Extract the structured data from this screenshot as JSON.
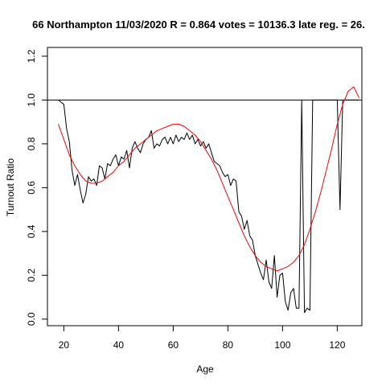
{
  "chart_data": {
    "type": "line",
    "title": "66 Northampton 11/03/2020 R = 0.864 votes = 10136.3 late reg. = 26.",
    "xlabel": "Age",
    "ylabel": "Turnout Ratio",
    "xlim": [
      14,
      129
    ],
    "ylim": [
      -0.03,
      1.24
    ],
    "xticks": [
      20,
      40,
      60,
      80,
      100,
      120
    ],
    "yticks": [
      0.0,
      0.2,
      0.4,
      0.6,
      0.8,
      1.0,
      1.2
    ],
    "xtick_labels": [
      "20",
      "40",
      "60",
      "80",
      "100",
      "120"
    ],
    "ytick_labels": [
      "0.0",
      "0.2",
      "0.4",
      "0.6",
      "0.8",
      "1.0",
      "1.2"
    ],
    "reference_line": {
      "y": 1.0,
      "color": "#000000"
    },
    "series": [
      {
        "color": "#000000",
        "x": [
          18,
          19,
          20,
          21,
          22,
          23,
          24,
          25,
          26,
          27,
          28,
          29,
          30,
          31,
          32,
          33,
          34,
          35,
          36,
          37,
          38,
          39,
          40,
          41,
          42,
          43,
          44,
          45,
          46,
          47,
          48,
          49,
          50,
          51,
          52,
          53,
          54,
          55,
          56,
          57,
          58,
          59,
          60,
          61,
          62,
          63,
          64,
          65,
          66,
          67,
          68,
          69,
          70,
          71,
          72,
          73,
          74,
          75,
          76,
          77,
          78,
          79,
          80,
          81,
          82,
          83,
          84,
          85,
          86,
          87,
          88,
          89,
          90,
          91,
          92,
          93,
          94,
          95,
          96,
          97,
          98,
          99,
          100,
          101,
          102,
          103,
          104,
          105,
          106,
          107,
          108,
          109,
          110,
          111,
          112,
          113,
          114,
          115,
          116,
          117,
          118,
          119,
          120,
          121,
          122,
          123,
          124,
          125,
          126,
          127,
          128
        ],
        "y": [
          1.0,
          0.99,
          0.98,
          0.87,
          0.81,
          0.68,
          0.61,
          0.66,
          0.59,
          0.53,
          0.57,
          0.65,
          0.63,
          0.64,
          0.61,
          0.7,
          0.69,
          0.64,
          0.71,
          0.7,
          0.73,
          0.75,
          0.7,
          0.74,
          0.73,
          0.77,
          0.69,
          0.78,
          0.81,
          0.78,
          0.76,
          0.8,
          0.82,
          0.83,
          0.86,
          0.78,
          0.8,
          0.79,
          0.82,
          0.83,
          0.8,
          0.83,
          0.8,
          0.84,
          0.81,
          0.83,
          0.82,
          0.85,
          0.82,
          0.84,
          0.8,
          0.82,
          0.79,
          0.81,
          0.78,
          0.8,
          0.76,
          0.72,
          0.71,
          0.7,
          0.67,
          0.65,
          0.66,
          0.61,
          0.64,
          0.63,
          0.49,
          0.47,
          0.41,
          0.45,
          0.38,
          0.36,
          0.29,
          0.25,
          0.21,
          0.18,
          0.27,
          0.17,
          0.14,
          0.29,
          0.1,
          0.2,
          0.21,
          0.08,
          0.04,
          0.12,
          0.14,
          0.05,
          0.05,
          1.0,
          0.03,
          0.05,
          0.04,
          1.0,
          1.0,
          1.0,
          1.0,
          1.0,
          1.0,
          1.0,
          1.0,
          1.0,
          1.0,
          0.5,
          1.0,
          1.0,
          1.0,
          1.0,
          1.0,
          1.0,
          1.0
        ]
      },
      {
        "color": "#ff0000",
        "x": [
          18,
          20,
          22,
          24,
          26,
          28,
          30,
          32,
          34,
          36,
          38,
          40,
          42,
          44,
          46,
          48,
          50,
          52,
          54,
          56,
          58,
          60,
          62,
          64,
          66,
          68,
          70,
          72,
          74,
          76,
          78,
          80,
          82,
          84,
          86,
          88,
          90,
          92,
          94,
          96,
          98,
          100,
          102,
          104,
          106,
          108,
          110,
          112,
          114,
          116,
          118,
          120,
          122,
          124,
          126,
          128
        ],
        "y": [
          0.89,
          0.82,
          0.75,
          0.7,
          0.66,
          0.63,
          0.62,
          0.62,
          0.63,
          0.65,
          0.67,
          0.7,
          0.72,
          0.75,
          0.78,
          0.8,
          0.82,
          0.84,
          0.86,
          0.87,
          0.88,
          0.89,
          0.89,
          0.88,
          0.86,
          0.84,
          0.81,
          0.77,
          0.73,
          0.68,
          0.62,
          0.56,
          0.5,
          0.44,
          0.38,
          0.33,
          0.29,
          0.26,
          0.24,
          0.23,
          0.22,
          0.23,
          0.24,
          0.26,
          0.29,
          0.34,
          0.41,
          0.49,
          0.58,
          0.68,
          0.78,
          0.89,
          0.98,
          1.04,
          1.06,
          1.01
        ]
      }
    ]
  }
}
